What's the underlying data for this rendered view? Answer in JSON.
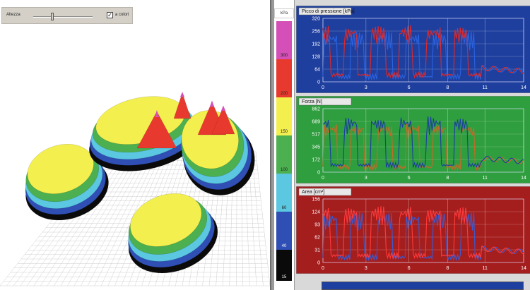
{
  "toolbar": {
    "height_label": "Altezza",
    "height_level": 0.32,
    "colors_checked": true,
    "check_mark": "✓",
    "colors_label": "a colori"
  },
  "scale": {
    "unit": "kPa",
    "bands": [
      {
        "color": "#d44fb8",
        "label": "300"
      },
      {
        "color": "#e8392e",
        "label": "200"
      },
      {
        "color": "#f3ef4e",
        "label": "150"
      },
      {
        "color": "#4caf50",
        "label": "100"
      },
      {
        "color": "#5bc7e0",
        "label": "60"
      },
      {
        "color": "#2f4fb4",
        "label": "40"
      },
      {
        "color": "#0a0a0a",
        "label": "15"
      }
    ]
  },
  "charts": [
    {
      "id": "pressure",
      "title": "Picco di pressione [kPa]",
      "bg": "#1f3f9e",
      "y_ticks": [
        "320",
        "256",
        "192",
        "128",
        "64",
        "0"
      ],
      "x_ticks": [
        "0",
        "3",
        "6",
        "8",
        "11",
        "14"
      ],
      "series_colors": [
        "#2a63e0",
        "#e02828"
      ]
    },
    {
      "id": "force",
      "title": "Forza [N]",
      "bg": "#2f9e3e",
      "y_ticks": [
        "862",
        "689",
        "517",
        "345",
        "172",
        "0"
      ],
      "x_ticks": [
        "0",
        "3",
        "6",
        "8",
        "11",
        "14"
      ],
      "series_colors": [
        "#c56a2a",
        "#1a3fa0"
      ]
    },
    {
      "id": "area",
      "title": "Area [cm²]",
      "bg": "#a51e1e",
      "y_ticks": [
        "156",
        "124",
        "93",
        "62",
        "31",
        "0"
      ],
      "x_ticks": [
        "0",
        "3",
        "6",
        "8",
        "11",
        "14"
      ],
      "series_colors": [
        "#3a5ad0",
        "#ff3a3a"
      ]
    }
  ]
}
